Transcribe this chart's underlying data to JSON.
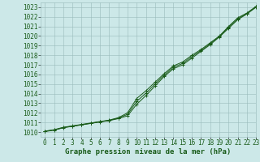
{
  "title": "Graphe pression niveau de la mer (hPa)",
  "xlim": [
    -0.5,
    23
  ],
  "ylim": [
    1009.5,
    1023.5
  ],
  "xticks": [
    0,
    1,
    2,
    3,
    4,
    5,
    6,
    7,
    8,
    9,
    10,
    11,
    12,
    13,
    14,
    15,
    16,
    17,
    18,
    19,
    20,
    21,
    22,
    23
  ],
  "yticks": [
    1010,
    1011,
    1012,
    1013,
    1014,
    1015,
    1016,
    1017,
    1018,
    1019,
    1020,
    1021,
    1022,
    1023
  ],
  "bg_color": "#cce8e8",
  "grid_color": "#99bbbb",
  "line_color": "#1a5c1a",
  "line1_x": [
    0,
    1,
    2,
    3,
    4,
    5,
    6,
    7,
    8,
    9,
    10,
    11,
    12,
    13,
    14,
    15,
    16,
    17,
    18,
    19,
    20,
    21,
    22,
    23
  ],
  "line1_y": [
    1010.1,
    1010.25,
    1010.5,
    1010.65,
    1010.8,
    1010.95,
    1011.1,
    1011.25,
    1011.5,
    1012.0,
    1013.5,
    1014.3,
    1015.2,
    1016.1,
    1016.9,
    1017.3,
    1018.0,
    1018.6,
    1019.3,
    1020.0,
    1021.0,
    1021.9,
    1022.4,
    1023.1
  ],
  "line2_x": [
    0,
    1,
    2,
    3,
    4,
    5,
    6,
    7,
    8,
    9,
    10,
    11,
    12,
    13,
    14,
    15,
    16,
    17,
    18,
    19,
    20,
    21,
    22,
    23
  ],
  "line2_y": [
    1010.05,
    1010.2,
    1010.45,
    1010.6,
    1010.75,
    1010.9,
    1011.05,
    1011.2,
    1011.4,
    1011.7,
    1012.9,
    1013.8,
    1014.8,
    1015.8,
    1016.6,
    1017.0,
    1017.7,
    1018.4,
    1019.1,
    1019.9,
    1020.8,
    1021.7,
    1022.3,
    1023.0
  ],
  "line3_x": [
    0,
    1,
    2,
    3,
    4,
    5,
    6,
    7,
    8,
    9,
    10,
    11,
    12,
    13,
    14,
    15,
    16,
    17,
    18,
    19,
    20,
    21,
    22,
    23
  ],
  "line3_y": [
    1010.08,
    1010.22,
    1010.47,
    1010.62,
    1010.77,
    1010.92,
    1011.08,
    1011.22,
    1011.45,
    1011.85,
    1013.2,
    1014.05,
    1015.0,
    1015.95,
    1016.75,
    1017.15,
    1017.85,
    1018.5,
    1019.2,
    1019.95,
    1020.9,
    1021.8,
    1022.35,
    1023.05
  ],
  "font_color": "#1a5c1a",
  "font_size_ticks": 5.5,
  "font_size_title": 6.5
}
